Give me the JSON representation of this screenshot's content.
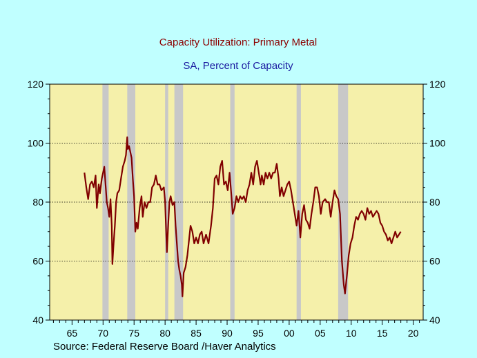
{
  "chart_data": {
    "type": "line",
    "title": "Capacity Utilization: Primary Metal",
    "subtitle": "SA, Percent of Capacity",
    "source": "Source:  Federal Reserve Board /Haver Analytics",
    "xlabel": "",
    "ylabel": "",
    "xlim": [
      1961.4,
      2021.6
    ],
    "ylim": [
      40,
      120
    ],
    "x_ticks": [
      1965,
      1970,
      1975,
      1980,
      1985,
      1990,
      1995,
      2000,
      2005,
      2010,
      2015,
      2020
    ],
    "x_tick_labels": [
      "65",
      "70",
      "75",
      "80",
      "85",
      "90",
      "95",
      "00",
      "05",
      "10",
      "15",
      "20"
    ],
    "y_ticks": [
      40,
      60,
      80,
      100,
      120
    ],
    "y_tick_labels": [
      "40",
      "60",
      "80",
      "100",
      "120"
    ],
    "dotted_gridlines_at": [
      60,
      80,
      100
    ],
    "recessions": [
      [
        1969.9,
        1970.9
      ],
      [
        1973.9,
        1975.2
      ],
      [
        1980.0,
        1980.5
      ],
      [
        1981.5,
        1982.9
      ],
      [
        1990.5,
        1991.2
      ],
      [
        2001.2,
        2001.9
      ],
      [
        2007.9,
        2009.5
      ]
    ],
    "colors": {
      "plot_bg": "#f5f0aa",
      "page_bg": "#c0ffff",
      "line": "#800000",
      "recession": "#c8c8c8",
      "title": "#8b0000",
      "subtitle": "#1a1aa0"
    },
    "series": [
      {
        "values": [
          [
            1967.0,
            90
          ],
          [
            1967.3,
            85
          ],
          [
            1967.6,
            81
          ],
          [
            1967.9,
            86
          ],
          [
            1968.2,
            87
          ],
          [
            1968.5,
            85
          ],
          [
            1968.8,
            89
          ],
          [
            1969.0,
            78
          ],
          [
            1969.3,
            86
          ],
          [
            1969.5,
            83
          ],
          [
            1969.8,
            88
          ],
          [
            1970.0,
            90
          ],
          [
            1970.2,
            92
          ],
          [
            1970.4,
            86
          ],
          [
            1970.6,
            80
          ],
          [
            1970.8,
            78
          ],
          [
            1971.0,
            75
          ],
          [
            1971.2,
            81
          ],
          [
            1971.4,
            72
          ],
          [
            1971.5,
            59
          ],
          [
            1971.7,
            66
          ],
          [
            1971.9,
            72
          ],
          [
            1972.1,
            80
          ],
          [
            1972.3,
            83
          ],
          [
            1972.6,
            84
          ],
          [
            1972.9,
            88
          ],
          [
            1973.2,
            92
          ],
          [
            1973.5,
            94
          ],
          [
            1973.7,
            96
          ],
          [
            1973.9,
            102
          ],
          [
            1974.0,
            98
          ],
          [
            1974.2,
            99
          ],
          [
            1974.4,
            97
          ],
          [
            1974.6,
            95
          ],
          [
            1974.8,
            88
          ],
          [
            1975.0,
            82
          ],
          [
            1975.2,
            70
          ],
          [
            1975.4,
            73
          ],
          [
            1975.6,
            71
          ],
          [
            1975.9,
            78
          ],
          [
            1976.2,
            82
          ],
          [
            1976.4,
            75
          ],
          [
            1976.7,
            80
          ],
          [
            1977.0,
            78
          ],
          [
            1977.3,
            80
          ],
          [
            1977.6,
            80
          ],
          [
            1977.9,
            85
          ],
          [
            1978.2,
            86
          ],
          [
            1978.5,
            89
          ],
          [
            1978.8,
            86
          ],
          [
            1979.1,
            86
          ],
          [
            1979.4,
            84
          ],
          [
            1979.8,
            85
          ],
          [
            1980.0,
            80
          ],
          [
            1980.2,
            68
          ],
          [
            1980.3,
            63
          ],
          [
            1980.5,
            72
          ],
          [
            1980.7,
            80
          ],
          [
            1980.9,
            82
          ],
          [
            1981.2,
            79
          ],
          [
            1981.5,
            80
          ],
          [
            1981.7,
            72
          ],
          [
            1981.9,
            66
          ],
          [
            1982.1,
            60
          ],
          [
            1982.3,
            57
          ],
          [
            1982.5,
            55
          ],
          [
            1982.7,
            52
          ],
          [
            1982.8,
            48
          ],
          [
            1983.0,
            56
          ],
          [
            1983.3,
            58
          ],
          [
            1983.6,
            62
          ],
          [
            1983.9,
            68
          ],
          [
            1984.1,
            72
          ],
          [
            1984.4,
            70
          ],
          [
            1984.7,
            66
          ],
          [
            1985.0,
            68
          ],
          [
            1985.3,
            66
          ],
          [
            1985.6,
            69
          ],
          [
            1985.9,
            70
          ],
          [
            1986.2,
            66
          ],
          [
            1986.6,
            69
          ],
          [
            1987.0,
            66
          ],
          [
            1987.4,
            72
          ],
          [
            1987.7,
            78
          ],
          [
            1988.0,
            88
          ],
          [
            1988.3,
            89
          ],
          [
            1988.6,
            86
          ],
          [
            1988.9,
            92
          ],
          [
            1989.2,
            94
          ],
          [
            1989.5,
            86
          ],
          [
            1989.8,
            87
          ],
          [
            1990.1,
            84
          ],
          [
            1990.4,
            90
          ],
          [
            1990.7,
            82
          ],
          [
            1990.9,
            76
          ],
          [
            1991.2,
            78
          ],
          [
            1991.5,
            82
          ],
          [
            1991.8,
            80
          ],
          [
            1992.1,
            82
          ],
          [
            1992.4,
            81
          ],
          [
            1992.7,
            82
          ],
          [
            1993.0,
            80
          ],
          [
            1993.3,
            84
          ],
          [
            1993.6,
            86
          ],
          [
            1993.9,
            90
          ],
          [
            1994.2,
            86
          ],
          [
            1994.5,
            92
          ],
          [
            1994.8,
            94
          ],
          [
            1995.1,
            90
          ],
          [
            1995.4,
            86
          ],
          [
            1995.6,
            89
          ],
          [
            1995.9,
            86
          ],
          [
            1996.2,
            90
          ],
          [
            1996.5,
            88
          ],
          [
            1996.8,
            90
          ],
          [
            1997.1,
            88
          ],
          [
            1997.4,
            90
          ],
          [
            1997.7,
            90
          ],
          [
            1998.0,
            93
          ],
          [
            1998.3,
            88
          ],
          [
            1998.5,
            82
          ],
          [
            1998.8,
            85
          ],
          [
            1999.1,
            82
          ],
          [
            1999.4,
            84
          ],
          [
            1999.7,
            86
          ],
          [
            2000.0,
            87
          ],
          [
            2000.3,
            84
          ],
          [
            2000.6,
            80
          ],
          [
            2000.9,
            76
          ],
          [
            2001.2,
            72
          ],
          [
            2001.5,
            77
          ],
          [
            2001.8,
            68
          ],
          [
            2002.1,
            76
          ],
          [
            2002.4,
            79
          ],
          [
            2002.7,
            74
          ],
          [
            2003.0,
            73
          ],
          [
            2003.3,
            71
          ],
          [
            2003.6,
            76
          ],
          [
            2003.9,
            80
          ],
          [
            2004.2,
            85
          ],
          [
            2004.5,
            85
          ],
          [
            2004.8,
            82
          ],
          [
            2005.1,
            76
          ],
          [
            2005.4,
            80
          ],
          [
            2005.8,
            81
          ],
          [
            2006.1,
            80
          ],
          [
            2006.4,
            80
          ],
          [
            2006.7,
            75
          ],
          [
            2007.0,
            80
          ],
          [
            2007.3,
            84
          ],
          [
            2007.6,
            82
          ],
          [
            2007.9,
            81
          ],
          [
            2008.2,
            76
          ],
          [
            2008.5,
            60
          ],
          [
            2008.8,
            52
          ],
          [
            2009.0,
            49
          ],
          [
            2009.3,
            55
          ],
          [
            2009.6,
            62
          ],
          [
            2009.9,
            66
          ],
          [
            2010.2,
            68
          ],
          [
            2010.5,
            72
          ],
          [
            2010.8,
            75
          ],
          [
            2011.1,
            74
          ],
          [
            2011.4,
            76
          ],
          [
            2011.7,
            77
          ],
          [
            2012.0,
            76
          ],
          [
            2012.3,
            74
          ],
          [
            2012.6,
            78
          ],
          [
            2012.9,
            76
          ],
          [
            2013.2,
            77
          ],
          [
            2013.5,
            75
          ],
          [
            2013.8,
            76
          ],
          [
            2014.1,
            77
          ],
          [
            2014.4,
            76
          ],
          [
            2014.7,
            73
          ],
          [
            2015.0,
            72
          ],
          [
            2015.3,
            70
          ],
          [
            2015.6,
            69
          ],
          [
            2015.9,
            67
          ],
          [
            2016.2,
            68
          ],
          [
            2016.5,
            66
          ],
          [
            2016.8,
            68
          ],
          [
            2017.1,
            70
          ],
          [
            2017.4,
            68
          ],
          [
            2017.7,
            69
          ],
          [
            2018.0,
            70
          ]
        ]
      }
    ]
  }
}
